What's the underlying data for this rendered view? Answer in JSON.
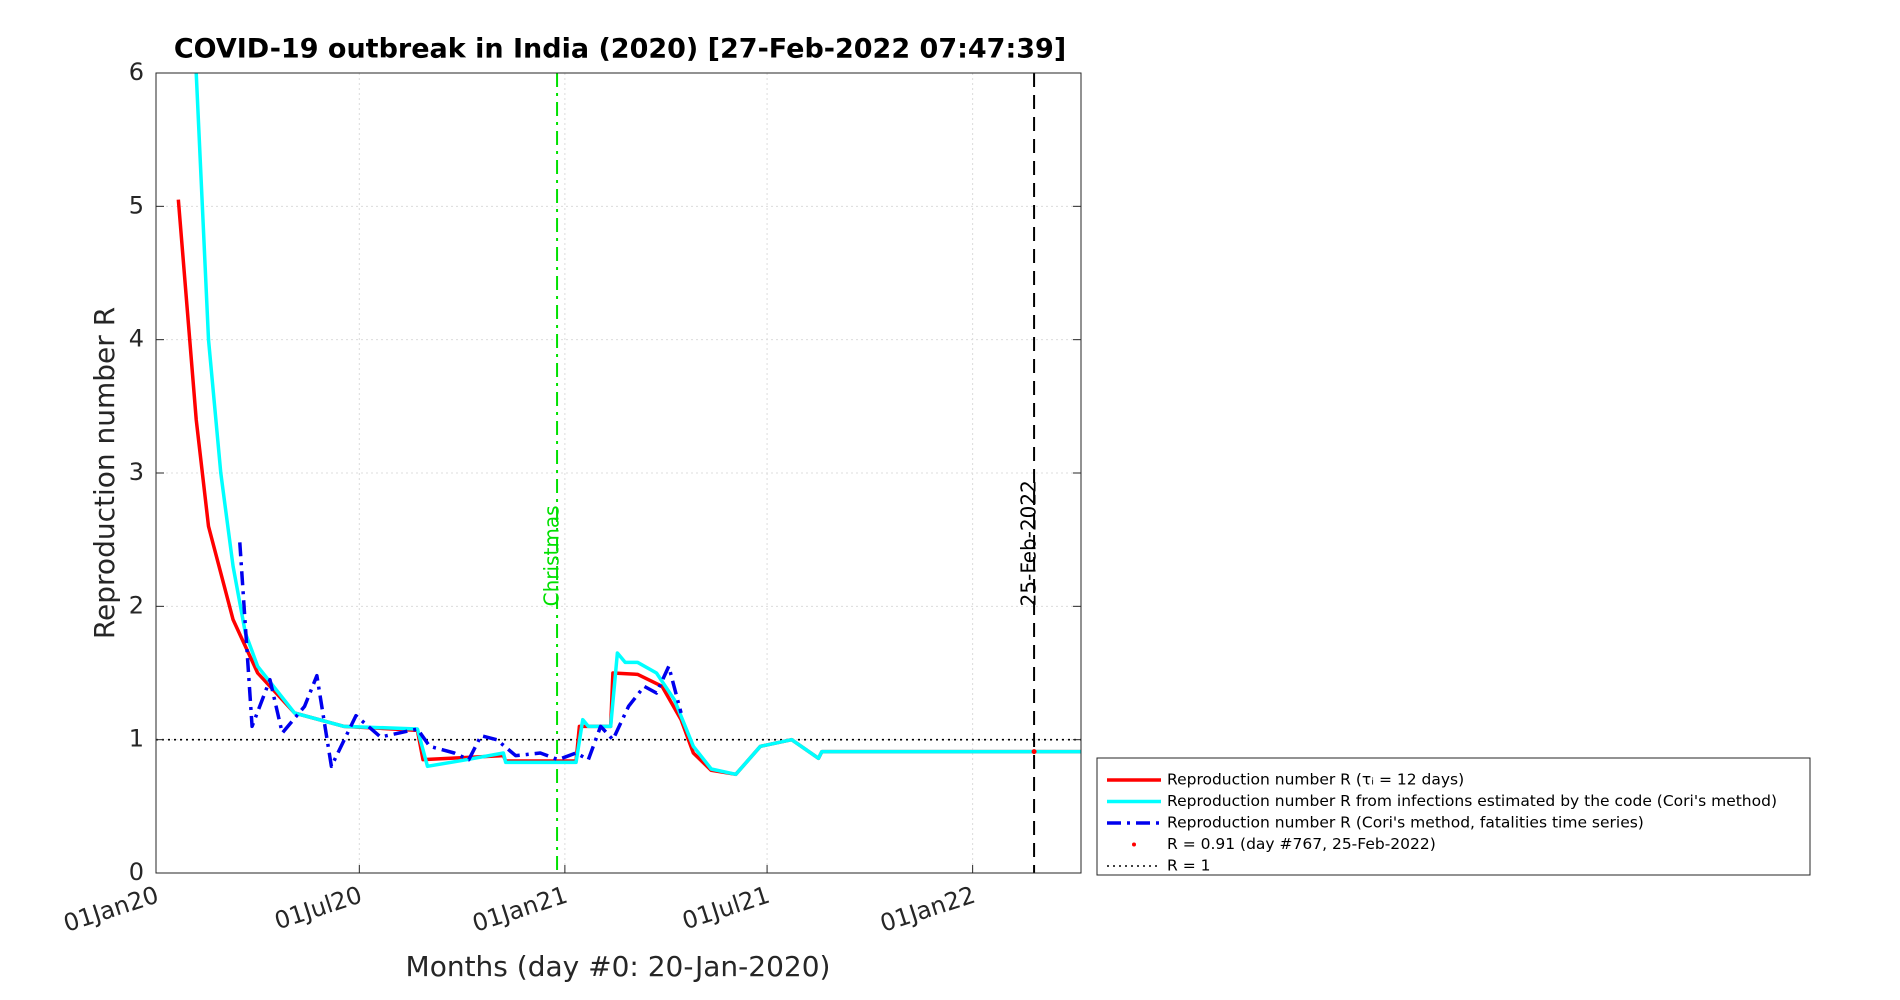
{
  "chart_data": {
    "type": "line",
    "title": "COVID-19 outbreak in India (2020) [27-Feb-2022 07:47:39]",
    "xlabel": "Months (day #0: 20-Jan-2020)",
    "ylabel": "Reproduction number R",
    "xlim": [
      "2020-01-01",
      "2022-04-08"
    ],
    "ylim": [
      0,
      6
    ],
    "xticks": [
      {
        "value": "2020-01-01",
        "label": "01Jan20"
      },
      {
        "value": "2020-07-01",
        "label": "01Jul20"
      },
      {
        "value": "2021-01-01",
        "label": "01Jan21"
      },
      {
        "value": "2021-07-01",
        "label": "01Jul21"
      },
      {
        "value": "2022-01-01",
        "label": "01Jan22"
      }
    ],
    "yticks": [
      0,
      1,
      2,
      3,
      4,
      5,
      6
    ],
    "grid": true,
    "legend": "lower right outside",
    "series": [
      {
        "name": "Reproduction number R (τᵢ = 12 days)",
        "color": "#ff0000",
        "style": "solid",
        "x": [
          "2020-01-21",
          "2020-02-06",
          "2020-02-17",
          "2020-03-10",
          "2020-04-01",
          "2020-05-04",
          "2020-06-17",
          "2020-08-22",
          "2020-08-27",
          "2020-11-07",
          "2020-11-09",
          "2021-01-11",
          "2021-01-14",
          "2021-02-11",
          "2021-02-13",
          "2021-03-07",
          "2021-03-29",
          "2021-04-15",
          "2021-04-26",
          "2021-05-12",
          "2021-06-03",
          "2021-06-25",
          "2021-07-23",
          "2021-08-16",
          "2021-08-19",
          "2022-04-08"
        ],
        "values": [
          5.05,
          3.4,
          2.6,
          1.9,
          1.5,
          1.2,
          1.1,
          1.07,
          0.85,
          0.88,
          0.84,
          0.84,
          1.1,
          1.1,
          1.5,
          1.49,
          1.4,
          1.15,
          0.9,
          0.77,
          0.74,
          0.95,
          1.0,
          0.86,
          0.91,
          0.91
        ]
      },
      {
        "name": "Reproduction number R from infections estimated by the code (Cori's method)",
        "color": "#00ffff",
        "style": "solid",
        "x": [
          "2020-02-06",
          "2020-02-17",
          "2020-02-28",
          "2020-03-10",
          "2020-03-21",
          "2020-04-01",
          "2020-05-04",
          "2020-06-17",
          "2020-08-22",
          "2020-08-31",
          "2020-10-05",
          "2020-11-07",
          "2020-11-09",
          "2021-01-11",
          "2021-01-17",
          "2021-01-22",
          "2021-02-11",
          "2021-02-17",
          "2021-02-24",
          "2021-03-07",
          "2021-03-24",
          "2021-04-09",
          "2021-04-26",
          "2021-05-12",
          "2021-06-03",
          "2021-06-25",
          "2021-07-23",
          "2021-08-16",
          "2021-08-19",
          "2022-04-08"
        ],
        "values": [
          6.0,
          4.0,
          3.0,
          2.3,
          1.8,
          1.55,
          1.2,
          1.1,
          1.08,
          0.8,
          0.85,
          0.9,
          0.83,
          0.83,
          1.15,
          1.1,
          1.1,
          1.65,
          1.58,
          1.58,
          1.5,
          1.3,
          0.95,
          0.78,
          0.74,
          0.95,
          1.0,
          0.86,
          0.91,
          0.91
        ]
      },
      {
        "name": "Reproduction number R (Cori's method, fatalities time series)",
        "color": "#0000ee",
        "style": "dashdot",
        "x": [
          "2020-03-16",
          "2020-03-27",
          "2020-04-12",
          "2020-04-23",
          "2020-05-13",
          "2020-05-24",
          "2020-06-06",
          "2020-06-28",
          "2020-07-20",
          "2020-08-22",
          "2020-09-02",
          "2020-09-24",
          "2020-10-07",
          "2020-10-18",
          "2020-11-01",
          "2020-11-18",
          "2020-12-10",
          "2020-12-26",
          "2021-01-11",
          "2021-01-22",
          "2021-02-02",
          "2021-02-13",
          "2021-02-27",
          "2021-03-13",
          "2021-03-24",
          "2021-04-04",
          "2021-04-15"
        ],
        "values": [
          2.48,
          1.1,
          1.45,
          1.05,
          1.25,
          1.48,
          0.8,
          1.18,
          1.02,
          1.08,
          0.95,
          0.9,
          0.85,
          1.03,
          1.0,
          0.88,
          0.9,
          0.85,
          0.9,
          0.85,
          1.1,
          1.0,
          1.25,
          1.4,
          1.35,
          1.55,
          1.2
        ]
      }
    ],
    "markers": [
      {
        "name": "R = 0.91 (day #767, 25-Feb-2022)",
        "x": "2022-02-25",
        "value": 0.91,
        "color": "#ff0000"
      }
    ],
    "hlines": [
      {
        "name": "R = 1",
        "value": 1,
        "color": "#000000"
      }
    ],
    "vlines": [
      {
        "label": "Christmas",
        "x": "2020-12-25",
        "color": "#00e000",
        "style": "dashdot"
      },
      {
        "label": "25-Feb-2022",
        "x": "2022-02-25",
        "color": "#000000",
        "style": "dashed"
      }
    ]
  }
}
